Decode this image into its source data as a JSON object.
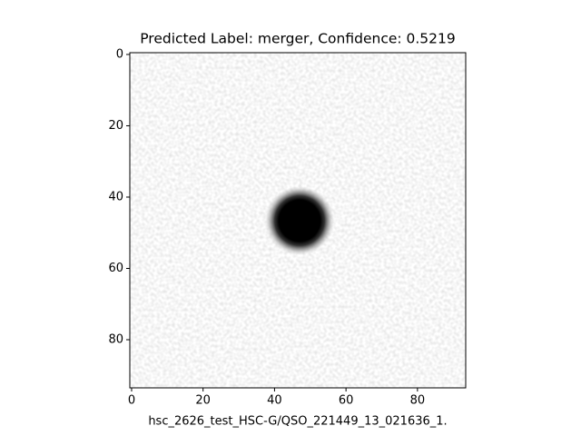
{
  "chart_data": {
    "type": "image",
    "title": "Predicted Label: merger, Confidence: 0.5219",
    "xlabel": "hsc_2626_test_HSC-G/QSO_221449_13_021636_1.",
    "xlim": [
      -0.5,
      93.5
    ],
    "ylim": [
      93.5,
      -0.5
    ],
    "xticks": [
      0,
      20,
      40,
      60,
      80
    ],
    "yticks": [
      0,
      20,
      40,
      60,
      80
    ]
  }
}
